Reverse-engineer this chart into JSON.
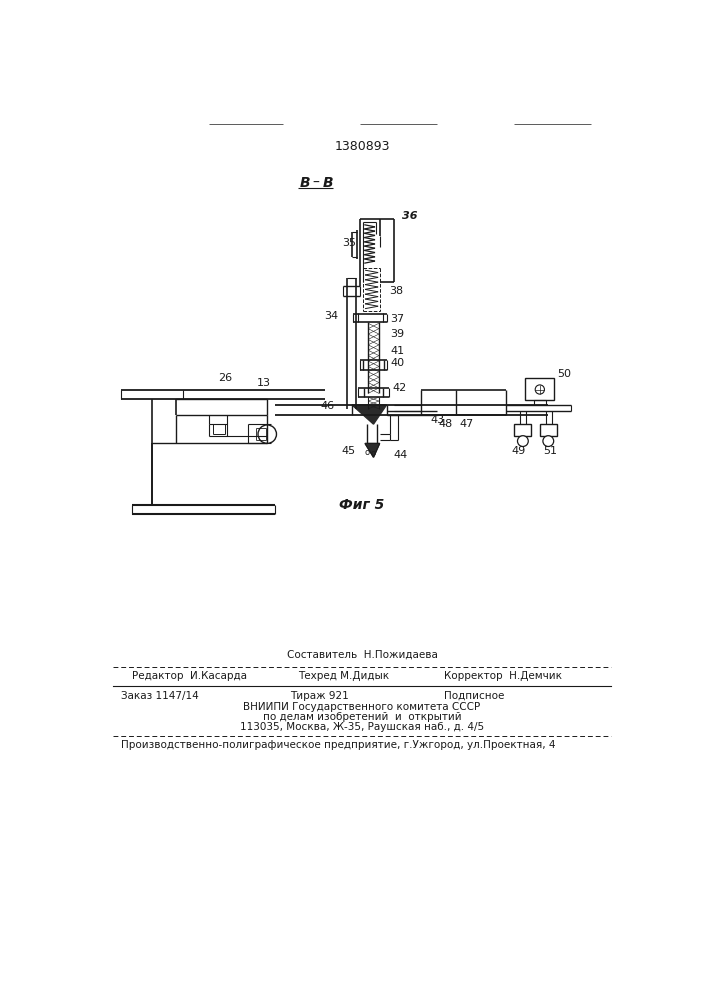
{
  "patent_number": "1380893",
  "background_color": "#ffffff",
  "line_color": "#1a1a1a",
  "text_color": "#1a1a1a",
  "footer_line0_center": "Составитель  Н.Пожидаева",
  "footer_line1_left": "Редактор  И.Касарда",
  "footer_line1_center": "Техред М.Дидык",
  "footer_line1_right": "Корректор  Н.Демчик",
  "footer_line2_left": "Заказ 1147/14",
  "footer_line2_center": "Тираж 921",
  "footer_line2_right": "Подписное",
  "footer_line3": "ВНИИПИ Государственного комитета СССР",
  "footer_line4": "по делам изобретений  и  открытий",
  "footer_line5": "113035, Москва, Ж-35, Раушская наб., д. 4/5",
  "footer_line6": "Производственно-полиграфическое предприятие, г.Ужгород, ул.Проектная, 4"
}
